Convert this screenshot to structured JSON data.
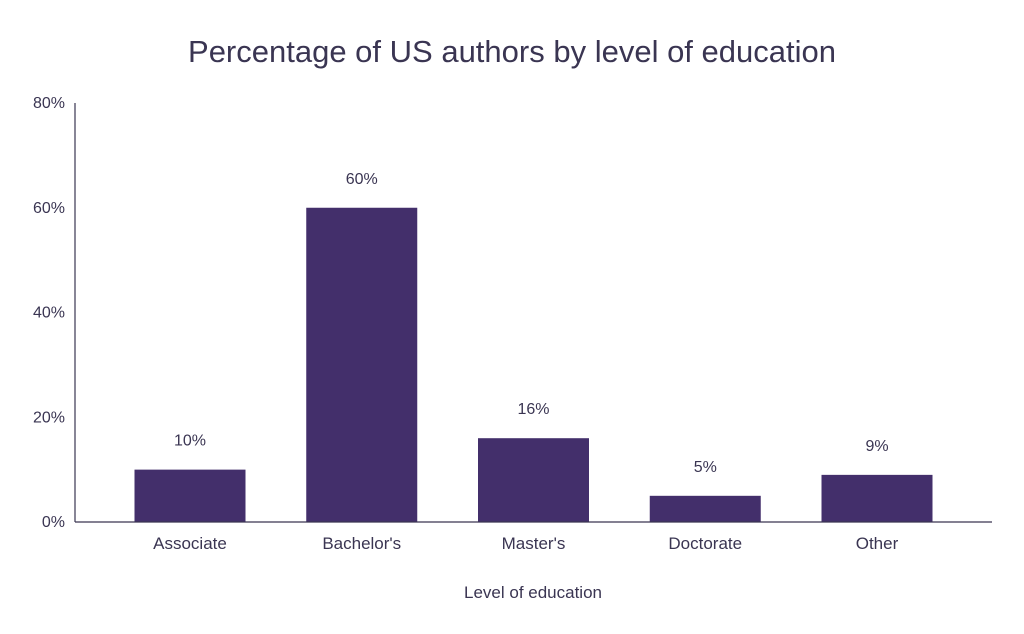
{
  "chart_data": {
    "type": "bar",
    "title": "Percentage of US authors by level of education",
    "xlabel": "Level of education",
    "ylabel": "",
    "categories": [
      "Associate",
      "Bachelor's",
      "Master's",
      "Doctorate",
      "Other"
    ],
    "values": [
      10,
      60,
      16,
      5,
      9
    ],
    "data_labels": [
      "10%",
      "60%",
      "16%",
      "5%",
      "9%"
    ],
    "ylim": [
      0,
      80
    ],
    "yticks": [
      0,
      20,
      40,
      60,
      80
    ],
    "ytick_labels": [
      "0%",
      "20%",
      "40%",
      "60%",
      "80%"
    ],
    "grid": false,
    "legend": "none"
  },
  "colors": {
    "bar": "#432f6b",
    "text": "#3a3552",
    "axis": "#3a3552"
  }
}
